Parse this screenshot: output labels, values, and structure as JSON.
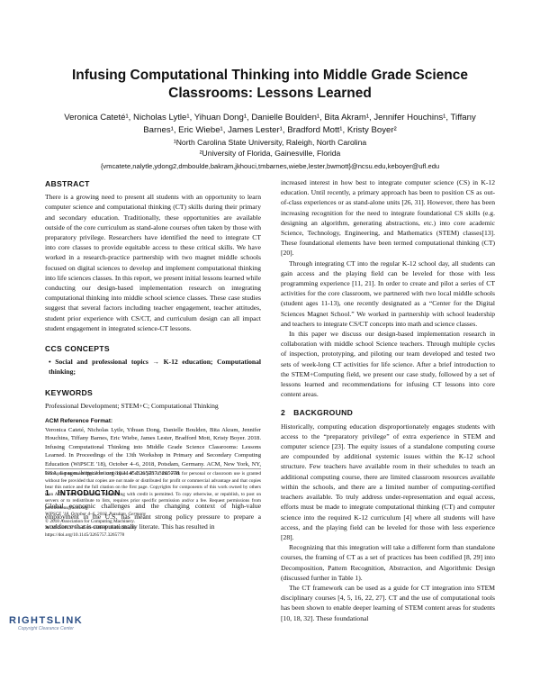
{
  "header": {
    "title": "Infusing Computational Thinking into Middle Grade Science Classrooms: Lessons Learned",
    "authors": "Veronica Cateté¹, Nicholas Lytle¹, Yihuan Dong¹, Danielle Boulden¹, Bita Akram¹, Jennifer Houchins¹, Tiffany Barnes¹, Eric Wiebe¹, James Lester¹, Bradford Mott¹, Kristy Boyer²",
    "affiliations": [
      "¹North Carolina State University, Raleigh, North Carolina",
      "²University of Florida, Gainesville, Florida"
    ],
    "emails": "{vmcatete,nalytle,ydong2,dmboulde,bakram,jkhouci,tmbarnes,wiebe,lester,bwmott}@ncsu.edu,keboyer@ufl.edu"
  },
  "left": {
    "abstract": {
      "heading": "ABSTRACT",
      "text": "There is a growing need to present all students with an opportunity to learn computer science and computational thinking (CT) skills during their primary and secondary education. Traditionally, these opportunities are available outside of the core curriculum as stand-alone courses often taken by those with preparatory privilege. Researchers have identified the need to integrate CT into core classes to provide equitable access to these critical skills. We have worked in a research-practice partnership with two magnet middle schools focused on digital sciences to develop and implement computational thinking into life sciences classes. In this report, we present initial lessons learned while conducting our design-based implementation research on integrating computational thinking into middle school science classes. These case studies suggest that several factors including teacher engagement, teacher attitudes, student prior experience with CS/CT, and curriculum design can all impact student engagement in integrated science-CT lessons."
    },
    "ccs": {
      "heading": "CCS CONCEPTS",
      "text": "• Social and professional topics → K-12 education; Computational thinking;"
    },
    "keywords": {
      "heading": "KEYWORDS",
      "text": "Professional Development; STEM+C; Computational Thinking"
    },
    "reference": {
      "heading": "ACM Reference Format:",
      "text": "Veronica Cateté, Nicholas Lytle, Yihuan Dong, Danielle Boulden, Bita Akram, Jennifer Houchins, Tiffany Barnes, Eric Wiebe, James Lester, Bradford Mott, Kristy Boyer. 2018. Infusing Computational Thinking into Middle Grade Science Classrooms: Lessons Learned. In Proceedings of the 13th Workshop in Primary and Secondary Computing Education (WiPSCE '18), October 4–6, 2018, Potsdam, Germany. ACM, New York, NY, USA, 6 pages. https://doi.org/10.1145/3265757.3265778"
    },
    "introduction": {
      "number": "1",
      "heading": "INTRODUCTION",
      "text": "Global economic challenges and the changing context of high-value employment in the U.S. has meant strong policy pressure to prepare a workforce that is computationally literate. This has resulted in"
    },
    "footnote": [
      "Permission to make digital or hard copies of all or part of this work for personal or classroom use is granted without fee provided that copies are not made or distributed for profit or commercial advantage and that copies bear this notice and the full citation on the first page. Copyrights for components of this work owned by others than ACM must be honored. Abstracting with credit is permitted. To copy otherwise, or republish, to post on servers or to redistribute to lists, requires prior specific permission and/or a fee. Request permissions from permissions@acm.org.",
      "WiPSCE '18, October 4–6, 2018, Potsdam, Germany",
      "© 2018 Association for Computing Machinery.",
      "ACM ISBN 978-1-4503-6588-8/18/10...$15.00",
      "https://doi.org/10.1145/3265757.3265778"
    ]
  },
  "right": {
    "paragraphs": [
      "increased interest in how best to integrate computer science (CS) in K-12 education. Until recently, a primary approach has been to position CS as out-of-class experiences or as stand-alone units [26, 31]. However, there has been increasing recognition for the need to integrate foundational CS skills (e.g. designing an algorithm, generating abstractions, etc.) into core academic Science, Technology, Engineering, and Mathematics (STEM) classes[13]. These foundational elements have been termed computational thinking (CT) [20].",
      "Through integrating CT into the regular K-12 school day, all students can gain access and the playing field can be leveled for those with less programming experience [11, 21]. In order to create and pilot a series of CT activities for the core classroom, we partnered with two local middle schools (student ages 11-13), one recently designated as a “Center for the Digital Sciences Magnet School.” We worked in partnership with school leadership and teachers to integrate CS/CT concepts into math and science classes.",
      "In this paper we discuss our design-based implementation research in collaboration with middle school Science teachers. Through multiple cycles of inspection, prototyping, and piloting our team developed and tested two sets of week-long CT activities for life science. After a brief introduction to the STEM+Computing field, we present our case study, followed by a set of lessons learned and recommendations for infusing CT lessons into core content areas."
    ],
    "background": {
      "number": "2",
      "heading": "BACKGROUND",
      "paragraphs": [
        "Historically, computing education disproportionately engages students with access to the “preparatory privilege” of extra experience in STEM and computer science [23]. The equity issues of a standalone computing course are compounded by additional systemic issues within the K-12 school structure. Few teachers have available room in their schedules to teach an additional computing course, there are limited classroom resources available within the schools, and there are a limited number of computing-certified teachers available. To truly address under-representation and equal access, efforts must be made to integrate computational thinking (CT) and computer science into the required K-12 curriculum [4] where all students will have access, and the playing field can be leveled for those with less experience [28].",
        "Recognizing that this integration will take a different form than standalone courses, the framing of CT as a set of practices has been codified [8, 29] into Decomposition, Pattern Recognition, Abstraction, and Algorithmic Design (discussed further in Table 1).",
        "The CT framework can be used as a guide for CT integration into STEM disciplinary courses [4, 5, 16, 22, 27]. CT and the use of computational tools has been shown to enable deeper learning of STEM content areas for students [10, 18, 32]. These foundational"
      ]
    }
  },
  "logo": {
    "name": "RIGHTSLINK",
    "tagline": "Copyright Clearance Center"
  }
}
